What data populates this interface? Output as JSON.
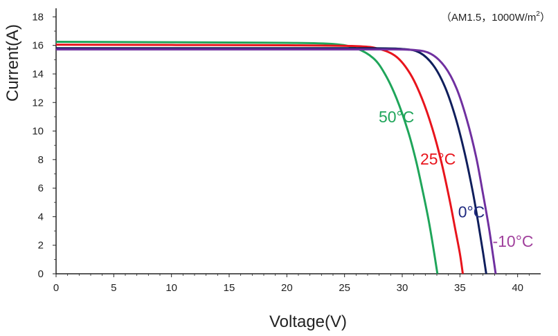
{
  "chart_data": {
    "type": "line",
    "title": "",
    "annotation": {
      "prefix": "（AM1.5，1000W/m",
      "superscript": "2",
      "suffix": "）"
    },
    "xlabel": "Voltage(V)",
    "ylabel": "Current(A)",
    "xlim": [
      0,
      42
    ],
    "ylim": [
      0,
      18.6
    ],
    "x_ticks": [
      "0",
      "5",
      "10",
      "15",
      "20",
      "25",
      "30",
      "35",
      "40"
    ],
    "y_ticks": [
      "0",
      "2",
      "4",
      "6",
      "8",
      "10",
      "12",
      "14",
      "16",
      "18"
    ],
    "grid": false,
    "legend": "inline labels",
    "series": [
      {
        "name": "50°C",
        "color": "#1fa55a",
        "x": [
          0,
          10,
          20,
          24,
          26,
          27.5,
          28.5,
          29.5,
          30.5,
          31.2,
          31.8,
          32.3,
          32.7,
          33.05
        ],
        "y": [
          16.25,
          16.22,
          16.18,
          16.1,
          15.8,
          15.1,
          14.0,
          12.3,
          10.0,
          7.9,
          5.7,
          3.7,
          1.8,
          0
        ]
      },
      {
        "name": "25°C",
        "color": "#e8141c",
        "x": [
          0,
          10,
          20,
          26,
          28,
          29.5,
          30.7,
          31.7,
          32.6,
          33.4,
          34.1,
          34.6,
          35.0,
          35.25
        ],
        "y": [
          16.05,
          16.03,
          16.01,
          15.95,
          15.75,
          15.2,
          14.0,
          12.3,
          10.2,
          7.8,
          5.2,
          3.1,
          1.4,
          0
        ]
      },
      {
        "name": "0°C",
        "color": "#0f1e5c",
        "x": [
          0,
          10,
          20,
          27,
          30,
          31.5,
          32.7,
          33.7,
          34.6,
          35.4,
          36.1,
          36.6,
          37.0,
          37.28
        ],
        "y": [
          15.8,
          15.8,
          15.8,
          15.8,
          15.75,
          15.5,
          14.6,
          13.1,
          11.0,
          8.5,
          5.8,
          3.5,
          1.5,
          0
        ]
      },
      {
        "name": "-10°C",
        "color": "#7030a0",
        "x": [
          0,
          10,
          20,
          28,
          31,
          32.5,
          33.7,
          34.7,
          35.6,
          36.4,
          37.0,
          37.5,
          37.85,
          38.1
        ],
        "y": [
          15.72,
          15.72,
          15.72,
          15.72,
          15.68,
          15.4,
          14.5,
          13.0,
          10.8,
          8.2,
          5.6,
          3.3,
          1.4,
          0
        ]
      }
    ],
    "curve_labels": [
      {
        "series": "50°C",
        "text": "50°C",
        "x": 29.5,
        "y": 10.6,
        "color": "#1fa55a"
      },
      {
        "series": "25°C",
        "text": "25°C",
        "x": 33.1,
        "y": 7.65,
        "color": "#e8141c"
      },
      {
        "series": "0°C",
        "text": "0°C",
        "x": 36.0,
        "y": 3.95,
        "color": "#1f2a80"
      },
      {
        "series": "-10°C",
        "text": "-10°C",
        "x": 39.6,
        "y": 1.9,
        "color": "#a0409c"
      }
    ]
  }
}
